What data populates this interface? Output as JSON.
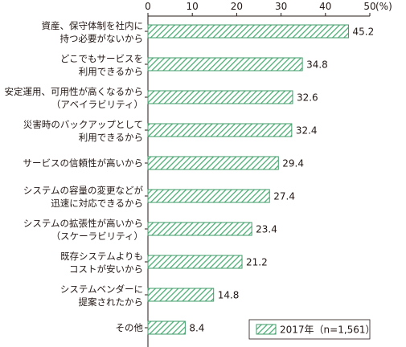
{
  "chart_data": {
    "type": "bar",
    "orientation": "horizontal",
    "categories": [
      [
        "資産、保守体制を社内に",
        "持つ必要がないから"
      ],
      [
        "どこでもサービスを",
        "利用できるから"
      ],
      [
        "安定運用、可用性が高くなるから",
        "（アベイラビリティ）"
      ],
      [
        "災害時のバックアップとして",
        "利用できるから"
      ],
      [
        "サービスの信頼性が高いから"
      ],
      [
        "システムの容量の変更などが",
        "迅速に対応できるから"
      ],
      [
        "システムの拡張性が高いから",
        "（スケーラビリティ）"
      ],
      [
        "既存システムよりも",
        "コストが安いから"
      ],
      [
        "システムベンダーに",
        "提案されたから"
      ],
      [
        "その他"
      ]
    ],
    "series": [
      {
        "name": "2017年（n=1,561）",
        "values": [
          45.2,
          34.8,
          32.6,
          32.4,
          29.4,
          27.4,
          23.4,
          21.2,
          14.8,
          8.4
        ],
        "value_labels": [
          "45.2",
          "34.8",
          "32.6",
          "32.4",
          "29.4",
          "27.4",
          "23.4",
          "21.2",
          "14.8",
          "8.4"
        ]
      }
    ],
    "xlim": [
      0,
      50
    ],
    "xticks": [
      "0",
      "10",
      "20",
      "30",
      "40",
      "50"
    ],
    "x_unit": "(%)",
    "grid": false,
    "legend_position": "bottom-right",
    "colors": {
      "bar_stroke": "#3f9e6a",
      "bar_hatch": "#4fae77",
      "bar_fill": "#ffffff",
      "axis": "#231815"
    }
  }
}
